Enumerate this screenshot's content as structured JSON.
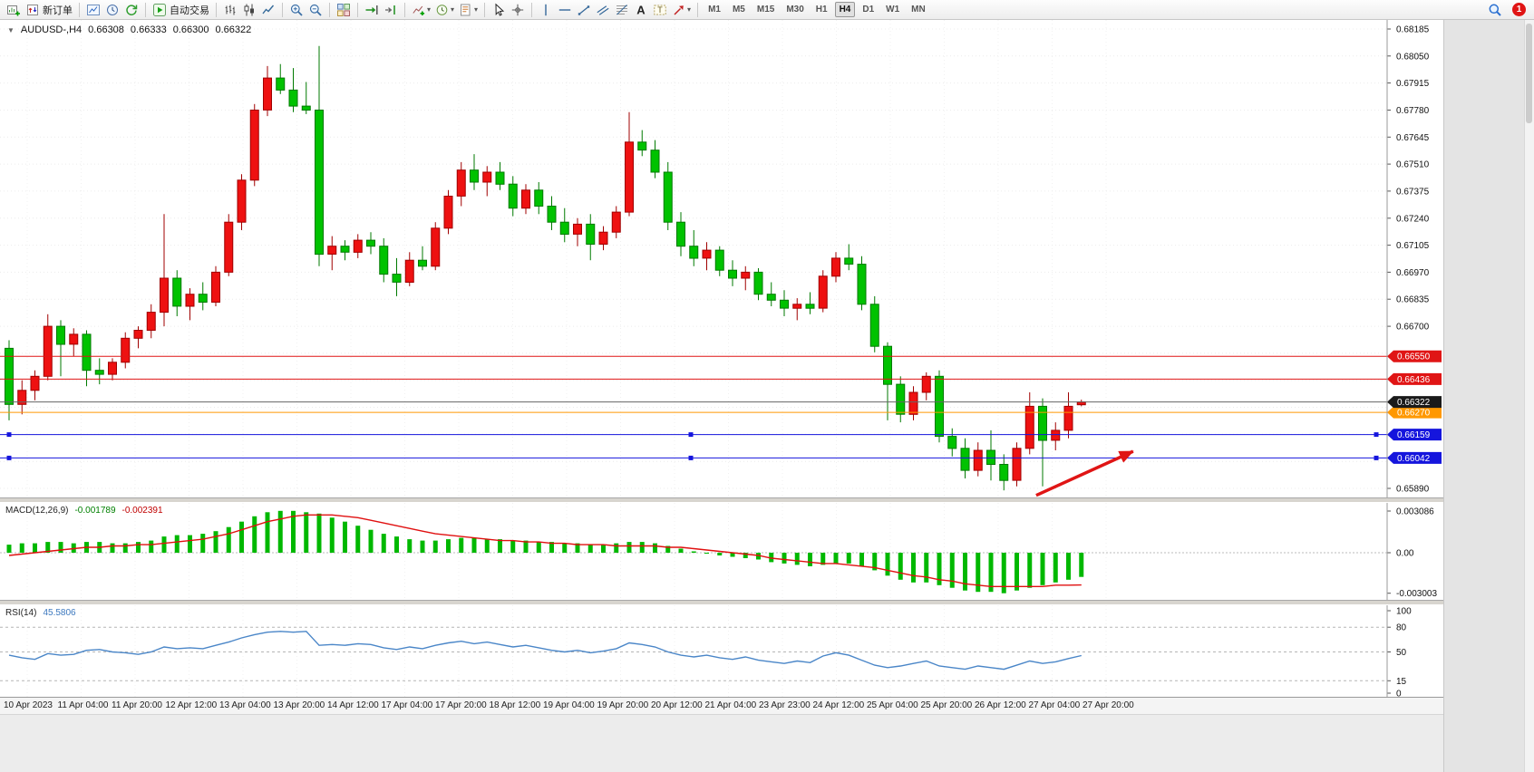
{
  "toolbar": {
    "new_order_label": "新订单",
    "auto_trading_label": "自动交易",
    "timeframes": [
      "M1",
      "M5",
      "M15",
      "M30",
      "H1",
      "H4",
      "D1",
      "W1",
      "MN"
    ],
    "active_timeframe": "H4",
    "notification_count": "1",
    "items": [
      {
        "type": "icon",
        "name": "new-chart"
      },
      {
        "type": "labeled",
        "name": "new-order",
        "label": "新订单"
      },
      {
        "type": "sep"
      },
      {
        "type": "icon",
        "name": "charts-window"
      },
      {
        "type": "icon",
        "name": "history-center"
      },
      {
        "type": "icon",
        "name": "refresh"
      },
      {
        "type": "sep"
      },
      {
        "type": "labeled",
        "name": "auto-trading",
        "label": "自动交易"
      },
      {
        "type": "sep"
      },
      {
        "type": "icon",
        "name": "bar-chart-mode"
      },
      {
        "type": "icon",
        "name": "candlestick-mode"
      },
      {
        "type": "icon",
        "name": "line-chart-mode"
      },
      {
        "type": "sep"
      },
      {
        "type": "icon",
        "name": "zoom-in"
      },
      {
        "type": "icon",
        "name": "zoom-out"
      },
      {
        "type": "sep"
      },
      {
        "type": "icon",
        "name": "tile-windows"
      },
      {
        "type": "sep"
      },
      {
        "type": "icon",
        "name": "auto-scroll"
      },
      {
        "type": "icon",
        "name": "chart-shift"
      },
      {
        "type": "sep"
      },
      {
        "type": "icon",
        "name": "indicators",
        "drop": true
      },
      {
        "type": "icon",
        "name": "periods",
        "drop": true
      },
      {
        "type": "icon",
        "name": "templates",
        "drop": true
      },
      {
        "type": "sep"
      },
      {
        "type": "icon",
        "name": "cursor"
      },
      {
        "type": "icon",
        "name": "crosshair"
      },
      {
        "type": "sep"
      },
      {
        "type": "icon",
        "name": "vertical-line"
      },
      {
        "type": "icon",
        "name": "horizontal-line"
      },
      {
        "type": "icon",
        "name": "trendline"
      },
      {
        "type": "icon",
        "name": "equidistant-channel"
      },
      {
        "type": "icon",
        "name": "fibonacci"
      },
      {
        "type": "icon",
        "name": "text"
      },
      {
        "type": "icon",
        "name": "text-label"
      },
      {
        "type": "icon",
        "name": "arrows",
        "drop": true
      },
      {
        "type": "sep"
      },
      {
        "type": "timeframes"
      },
      {
        "type": "spacer"
      },
      {
        "type": "icon",
        "name": "search"
      },
      {
        "type": "badge"
      }
    ]
  },
  "chart": {
    "header": {
      "collapse_glyph": "▼",
      "symbol_period": "AUDUSD-,H4",
      "open": "0.66308",
      "high": "0.66333",
      "low": "0.66300",
      "close": "0.66322"
    },
    "colors": {
      "up": "#ee1111",
      "up_border": "#a00000",
      "down": "#00c200",
      "down_border": "#007a00"
    },
    "price_axis": {
      "max": 0.68185,
      "min": 0.6589,
      "step": 0.00135,
      "ticks": [
        0.68185,
        0.6805,
        0.67915,
        0.6778,
        0.67645,
        0.6751,
        0.67375,
        0.6724,
        0.67105,
        0.6697,
        0.66835,
        0.667,
        0.6589
      ]
    },
    "levels": [
      {
        "value": 0.6655,
        "label": "0.66550",
        "color": "#e01515"
      },
      {
        "value": 0.66436,
        "label": "0.66436",
        "color": "#e01515"
      },
      {
        "value": 0.6627,
        "label": "0.66270",
        "color": "#ff9800"
      },
      {
        "value": 0.66159,
        "label": "0.66159",
        "color": "#1515dd",
        "handles": true
      },
      {
        "value": 0.66042,
        "label": "0.66042",
        "color": "#1515dd",
        "handles": true
      }
    ],
    "current_price": {
      "value": 0.66322,
      "label": "0.66322",
      "line_color": "#666666",
      "label_color": "#1a1a1a"
    },
    "annotation_arrow": {
      "from_bar": 79.5,
      "from_price": 0.65855,
      "to_bar": 87,
      "to_price": 0.66075,
      "color": "#e01515"
    },
    "candles": [
      [
        0.6659,
        0.6663,
        0.6623,
        0.6631
      ],
      [
        0.6631,
        0.6643,
        0.6626,
        0.6638
      ],
      [
        0.6638,
        0.6648,
        0.6633,
        0.6645
      ],
      [
        0.6645,
        0.6676,
        0.6643,
        0.667
      ],
      [
        0.667,
        0.6673,
        0.6645,
        0.6661
      ],
      [
        0.6661,
        0.6669,
        0.6655,
        0.6666
      ],
      [
        0.6666,
        0.6668,
        0.664,
        0.6648
      ],
      [
        0.6648,
        0.6654,
        0.6641,
        0.6646
      ],
      [
        0.6646,
        0.6654,
        0.6643,
        0.6652
      ],
      [
        0.6652,
        0.6667,
        0.6649,
        0.6664
      ],
      [
        0.6664,
        0.667,
        0.6659,
        0.6668
      ],
      [
        0.6668,
        0.6681,
        0.6664,
        0.6677
      ],
      [
        0.6677,
        0.6726,
        0.667,
        0.6694
      ],
      [
        0.6694,
        0.6698,
        0.6675,
        0.668
      ],
      [
        0.668,
        0.6689,
        0.6673,
        0.6686
      ],
      [
        0.6686,
        0.6692,
        0.6678,
        0.6682
      ],
      [
        0.6682,
        0.67,
        0.668,
        0.6697
      ],
      [
        0.6697,
        0.6726,
        0.6695,
        0.6722
      ],
      [
        0.6722,
        0.6746,
        0.6718,
        0.6743
      ],
      [
        0.6743,
        0.6781,
        0.674,
        0.6778
      ],
      [
        0.6778,
        0.68,
        0.6775,
        0.6794
      ],
      [
        0.6794,
        0.6801,
        0.6786,
        0.6788
      ],
      [
        0.6788,
        0.6799,
        0.6777,
        0.678
      ],
      [
        0.678,
        0.6792,
        0.6776,
        0.6778
      ],
      [
        0.6778,
        0.681,
        0.67,
        0.6706
      ],
      [
        0.6706,
        0.6715,
        0.6698,
        0.671
      ],
      [
        0.671,
        0.6713,
        0.6703,
        0.6707
      ],
      [
        0.6707,
        0.6716,
        0.6704,
        0.6713
      ],
      [
        0.6713,
        0.6717,
        0.6706,
        0.671
      ],
      [
        0.671,
        0.6714,
        0.6692,
        0.6696
      ],
      [
        0.6696,
        0.6704,
        0.6685,
        0.6692
      ],
      [
        0.6692,
        0.6707,
        0.669,
        0.6703
      ],
      [
        0.6703,
        0.671,
        0.6698,
        0.67
      ],
      [
        0.67,
        0.6722,
        0.6698,
        0.6719
      ],
      [
        0.6719,
        0.6738,
        0.6716,
        0.6735
      ],
      [
        0.6735,
        0.6752,
        0.673,
        0.6748
      ],
      [
        0.6748,
        0.6756,
        0.6738,
        0.6742
      ],
      [
        0.6742,
        0.675,
        0.6735,
        0.6747
      ],
      [
        0.6747,
        0.6752,
        0.6738,
        0.6741
      ],
      [
        0.6741,
        0.6745,
        0.6725,
        0.6729
      ],
      [
        0.6729,
        0.6741,
        0.6726,
        0.6738
      ],
      [
        0.6738,
        0.6742,
        0.6726,
        0.673
      ],
      [
        0.673,
        0.6735,
        0.6718,
        0.6722
      ],
      [
        0.6722,
        0.6729,
        0.6712,
        0.6716
      ],
      [
        0.6716,
        0.6724,
        0.671,
        0.6721
      ],
      [
        0.6721,
        0.6726,
        0.6703,
        0.6711
      ],
      [
        0.6711,
        0.672,
        0.6708,
        0.6717
      ],
      [
        0.6717,
        0.673,
        0.6714,
        0.6727
      ],
      [
        0.6727,
        0.6777,
        0.6725,
        0.6762
      ],
      [
        0.6762,
        0.6768,
        0.6755,
        0.6758
      ],
      [
        0.6758,
        0.6763,
        0.6744,
        0.6747
      ],
      [
        0.6747,
        0.6752,
        0.6718,
        0.6722
      ],
      [
        0.6722,
        0.6727,
        0.6705,
        0.671
      ],
      [
        0.671,
        0.6718,
        0.67,
        0.6704
      ],
      [
        0.6704,
        0.6712,
        0.6698,
        0.6708
      ],
      [
        0.6708,
        0.671,
        0.6695,
        0.6698
      ],
      [
        0.6698,
        0.6703,
        0.669,
        0.6694
      ],
      [
        0.6694,
        0.67,
        0.6688,
        0.6697
      ],
      [
        0.6697,
        0.6699,
        0.6683,
        0.6686
      ],
      [
        0.6686,
        0.6692,
        0.668,
        0.6683
      ],
      [
        0.6683,
        0.6688,
        0.6675,
        0.6679
      ],
      [
        0.6679,
        0.6684,
        0.6673,
        0.6681
      ],
      [
        0.6681,
        0.6687,
        0.6676,
        0.6679
      ],
      [
        0.6679,
        0.6698,
        0.6677,
        0.6695
      ],
      [
        0.6695,
        0.6707,
        0.6692,
        0.6704
      ],
      [
        0.6704,
        0.6711,
        0.6698,
        0.6701
      ],
      [
        0.6701,
        0.6705,
        0.6678,
        0.6681
      ],
      [
        0.6681,
        0.6685,
        0.6657,
        0.666
      ],
      [
        0.666,
        0.6662,
        0.6623,
        0.6641
      ],
      [
        0.6641,
        0.6645,
        0.6622,
        0.6626
      ],
      [
        0.6626,
        0.664,
        0.6623,
        0.6637
      ],
      [
        0.6637,
        0.6647,
        0.6633,
        0.6645
      ],
      [
        0.6645,
        0.6648,
        0.6612,
        0.6615
      ],
      [
        0.6615,
        0.6619,
        0.6605,
        0.6609
      ],
      [
        0.6609,
        0.6614,
        0.6594,
        0.6598
      ],
      [
        0.6598,
        0.6612,
        0.6595,
        0.6608
      ],
      [
        0.6608,
        0.6618,
        0.6593,
        0.6601
      ],
      [
        0.6601,
        0.6606,
        0.6588,
        0.6593
      ],
      [
        0.6593,
        0.6612,
        0.659,
        0.6609
      ],
      [
        0.6609,
        0.6637,
        0.6606,
        0.663
      ],
      [
        0.663,
        0.6634,
        0.659,
        0.6613
      ],
      [
        0.6613,
        0.6622,
        0.6608,
        0.6618
      ],
      [
        0.6618,
        0.6637,
        0.6614,
        0.663
      ],
      [
        0.66308,
        0.66333,
        0.663,
        0.66322
      ]
    ]
  },
  "macd": {
    "title": "MACD(12,26,9)",
    "macd_value": "-0.001789",
    "signal_value": "-0.002391",
    "histogram_color": "#00b800",
    "signal_color": "#e01010",
    "axis": [
      {
        "value": 0.003086,
        "label": "0.003086"
      },
      {
        "value": 0,
        "label": "0.00"
      },
      {
        "value": -0.003003,
        "label": "-0.003003"
      }
    ],
    "histogram": [
      0.0006,
      0.0007,
      0.0007,
      0.0008,
      0.0008,
      0.0007,
      0.0008,
      0.0008,
      0.0007,
      0.0007,
      0.0008,
      0.0009,
      0.0012,
      0.0013,
      0.0013,
      0.0014,
      0.0016,
      0.0019,
      0.0023,
      0.0027,
      0.003,
      0.0031,
      0.0031,
      0.003,
      0.0029,
      0.0026,
      0.0023,
      0.002,
      0.0017,
      0.0014,
      0.0012,
      0.001,
      0.0009,
      0.0009,
      0.001,
      0.0011,
      0.0011,
      0.001,
      0.001,
      0.0009,
      0.0009,
      0.0008,
      0.0008,
      0.0007,
      0.0007,
      0.0006,
      0.0006,
      0.0007,
      0.0008,
      0.0008,
      0.0007,
      0.0005,
      0.0003,
      0.0001,
      0.0,
      -0.0002,
      -0.0003,
      -0.0004,
      -0.0005,
      -0.0007,
      -0.0008,
      -0.0009,
      -0.001,
      -0.0009,
      -0.0008,
      -0.0008,
      -0.001,
      -0.0013,
      -0.0017,
      -0.002,
      -0.0022,
      -0.0022,
      -0.0024,
      -0.0026,
      -0.0028,
      -0.0029,
      -0.0029,
      -0.003,
      -0.0028,
      -0.0026,
      -0.0024,
      -0.0022,
      -0.002,
      -0.001789
    ],
    "signal": [
      -0.0002,
      -0.0001,
      0.0,
      0.0001,
      0.0002,
      0.0003,
      0.0004,
      0.0004,
      0.0005,
      0.0005,
      0.0006,
      0.0006,
      0.0007,
      0.0008,
      0.0009,
      0.001,
      0.0012,
      0.0014,
      0.0017,
      0.002,
      0.0023,
      0.0025,
      0.0027,
      0.0028,
      0.0028,
      0.0028,
      0.0027,
      0.0026,
      0.0024,
      0.0022,
      0.002,
      0.0018,
      0.0016,
      0.0014,
      0.0013,
      0.0012,
      0.0011,
      0.001,
      0.0009,
      0.0009,
      0.0008,
      0.0008,
      0.0007,
      0.0007,
      0.0006,
      0.0006,
      0.0006,
      0.0005,
      0.0005,
      0.0005,
      0.0005,
      0.0004,
      0.0004,
      0.0003,
      0.0002,
      0.0001,
      0.0,
      -0.0001,
      -0.0002,
      -0.0004,
      -0.0005,
      -0.0006,
      -0.0007,
      -0.0008,
      -0.0008,
      -0.0009,
      -0.001,
      -0.0011,
      -0.0013,
      -0.0015,
      -0.0017,
      -0.0018,
      -0.002,
      -0.0021,
      -0.0023,
      -0.0024,
      -0.0025,
      -0.0025,
      -0.0025,
      -0.0025,
      -0.0025,
      -0.0024,
      -0.0024,
      -0.002391
    ]
  },
  "rsi": {
    "title": "RSI(14)",
    "value": "45.5806",
    "line_color": "#4a86c8",
    "axis": [
      100,
      80,
      50,
      15,
      0
    ],
    "level_lines": [
      80,
      50,
      15
    ],
    "series": [
      46,
      43,
      41,
      48,
      46,
      47,
      52,
      53,
      50,
      49,
      47,
      50,
      56,
      54,
      55,
      54,
      58,
      62,
      67,
      71,
      74,
      75,
      74,
      75,
      58,
      59,
      58,
      60,
      59,
      55,
      53,
      56,
      54,
      58,
      61,
      63,
      60,
      62,
      59,
      56,
      58,
      55,
      52,
      50,
      52,
      49,
      51,
      54,
      61,
      59,
      56,
      50,
      46,
      44,
      46,
      43,
      41,
      44,
      40,
      38,
      36,
      39,
      37,
      45,
      49,
      46,
      40,
      34,
      31,
      33,
      36,
      39,
      33,
      31,
      29,
      33,
      31,
      29,
      34,
      39,
      36,
      38,
      42,
      45.5806
    ]
  },
  "time_axis": [
    "10 Apr 2023",
    "11 Apr 04:00",
    "11 Apr 20:00",
    "12 Apr 12:00",
    "13 Apr 04:00",
    "13 Apr 20:00",
    "14 Apr 12:00",
    "17 Apr 04:00",
    "17 Apr 20:00",
    "18 Apr 12:00",
    "19 Apr 04:00",
    "19 Apr 20:00",
    "20 Apr 12:00",
    "21 Apr 04:00",
    "23 Apr 23:00",
    "24 Apr 12:00",
    "25 Apr 04:00",
    "25 Apr 20:00",
    "26 Apr 12:00",
    "27 Apr 04:00",
    "27 Apr 20:00"
  ]
}
